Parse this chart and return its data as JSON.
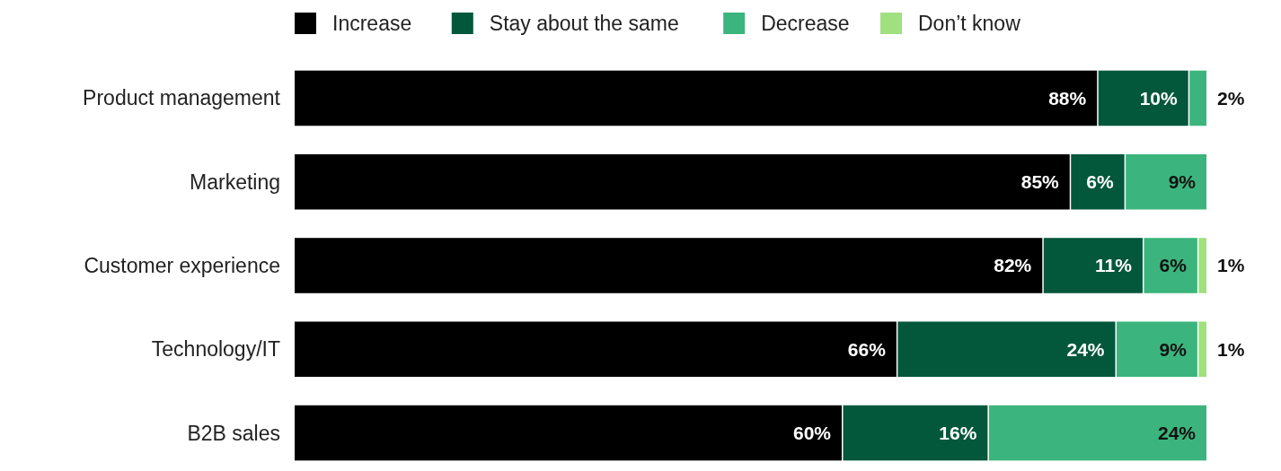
{
  "chart_data": {
    "type": "bar",
    "orientation": "horizontal",
    "stacked": true,
    "legend": "top",
    "xlim": [
      0,
      100
    ],
    "categories": [
      "Product management",
      "Marketing",
      "Customer experience",
      "Technology/IT",
      "B2B sales"
    ],
    "series": [
      {
        "name": "Increase",
        "color": "#000000",
        "values": [
          88,
          85,
          82,
          66,
          60
        ],
        "value_labels": [
          "88%",
          "85%",
          "82%",
          "66%",
          "60%"
        ]
      },
      {
        "name": "Stay about the same",
        "color": "#03573b",
        "values": [
          10,
          6,
          11,
          24,
          16
        ],
        "value_labels": [
          "10%",
          "6%",
          "11%",
          "24%",
          "16%"
        ]
      },
      {
        "name": "Decrease",
        "color": "#3bb57d",
        "values": [
          2,
          9,
          6,
          9,
          24
        ],
        "value_labels": [
          "2%",
          "9%",
          "6%",
          "9%",
          "24%"
        ]
      },
      {
        "name": "Don’t know",
        "color": "#a0e07f",
        "values": [
          null,
          null,
          1,
          1,
          null
        ],
        "value_labels": [
          null,
          null,
          "1%",
          "1%",
          null
        ]
      }
    ]
  }
}
